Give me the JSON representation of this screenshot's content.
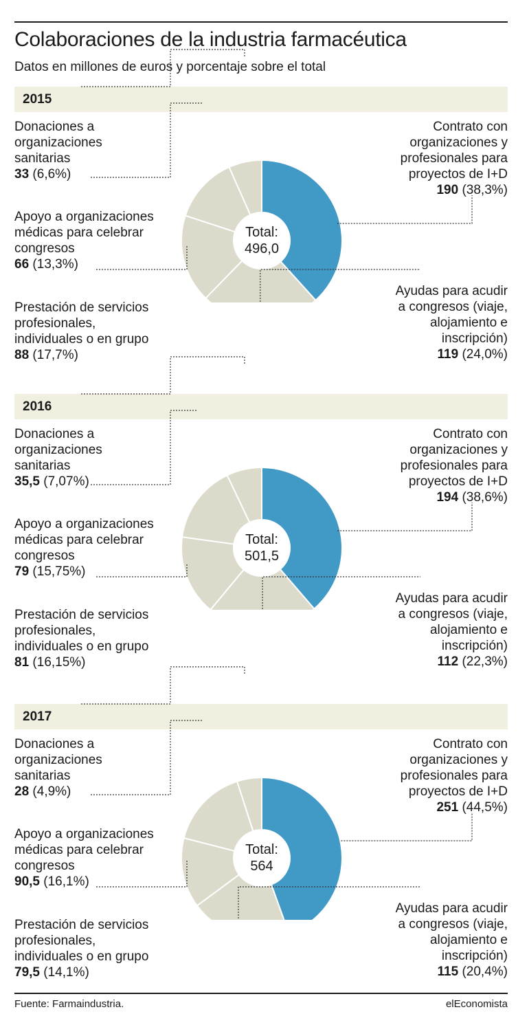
{
  "title": "Colaboraciones de la industria farmacéutica",
  "subtitle": "Datos en millones de euros y porcentaje sobre el total",
  "colors": {
    "highlight": "#4199c6",
    "base": "#dcdacb",
    "band": "#f0efe0",
    "text": "#1a1a1a"
  },
  "footer": {
    "source": "Fuente: Farmaindustria.",
    "brand": "elEconomista"
  },
  "chart_data": [
    {
      "type": "pie",
      "year": "2015",
      "center_label": "Total:",
      "total": "496,0",
      "slices": [
        {
          "lines": [
            "Contrato con",
            "organizaciones y",
            "profesionales para",
            "proyectos de I+D"
          ],
          "value": 190,
          "value_text": "190",
          "pct_text": "(38,3%)",
          "percent": 38.3,
          "highlight": true
        },
        {
          "lines": [
            "Ayudas para acudir",
            "a congresos (viaje,",
            "alojamiento e",
            "inscripción)"
          ],
          "value": 119,
          "value_text": "119",
          "pct_text": "(24,0%)",
          "percent": 24.0,
          "highlight": false
        },
        {
          "lines": [
            "Prestación de servicios",
            "profesionales,",
            "individuales o en grupo"
          ],
          "value": 88,
          "value_text": "88",
          "pct_text": "(17,7%)",
          "percent": 17.7,
          "highlight": false
        },
        {
          "lines": [
            "Apoyo a organizaciones",
            "médicas para celebrar",
            "congresos"
          ],
          "value": 66,
          "value_text": "66",
          "pct_text": "(13,3%)",
          "percent": 13.3,
          "highlight": false
        },
        {
          "lines": [
            "Donaciones a",
            "organizaciones",
            "sanitarias"
          ],
          "value": 33,
          "value_text": "33",
          "pct_text": "(6,6%)",
          "percent": 6.6,
          "highlight": false
        }
      ]
    },
    {
      "type": "pie",
      "year": "2016",
      "center_label": "Total:",
      "total": "501,5",
      "slices": [
        {
          "lines": [
            "Contrato con",
            "organizaciones y",
            "profesionales para",
            "proyectos de I+D"
          ],
          "value": 194,
          "value_text": "194",
          "pct_text": "(38,6%)",
          "percent": 38.6,
          "highlight": true
        },
        {
          "lines": [
            "Ayudas para acudir",
            "a congresos (viaje,",
            "alojamiento e",
            "inscripción)"
          ],
          "value": 112,
          "value_text": "112",
          "pct_text": "(22,3%)",
          "percent": 22.3,
          "highlight": false
        },
        {
          "lines": [
            "Prestación de servicios",
            "profesionales,",
            "individuales o en grupo"
          ],
          "value": 81,
          "value_text": "81",
          "pct_text": "(16,15%)",
          "percent": 16.15,
          "highlight": false
        },
        {
          "lines": [
            "Apoyo a organizaciones",
            "médicas para celebrar",
            "congresos"
          ],
          "value": 79,
          "value_text": "79",
          "pct_text": "(15,75%)",
          "percent": 15.75,
          "highlight": false
        },
        {
          "lines": [
            "Donaciones a",
            "organizaciones",
            "sanitarias"
          ],
          "value": 35.5,
          "value_text": "35,5",
          "pct_text": "(7,07%)",
          "percent": 7.07,
          "highlight": false
        }
      ]
    },
    {
      "type": "pie",
      "year": "2017",
      "center_label": "Total:",
      "total": "564",
      "slices": [
        {
          "lines": [
            "Contrato con",
            "organizaciones y",
            "profesionales para",
            "proyectos de I+D"
          ],
          "value": 251,
          "value_text": "251",
          "pct_text": "(44,5%)",
          "percent": 44.5,
          "highlight": true
        },
        {
          "lines": [
            "Ayudas para acudir",
            "a congresos (viaje,",
            "alojamiento e",
            "inscripción)"
          ],
          "value": 115,
          "value_text": "115",
          "pct_text": "(20,4%)",
          "percent": 20.4,
          "highlight": false
        },
        {
          "lines": [
            "Prestación de servicios",
            "profesionales,",
            "individuales o en grupo"
          ],
          "value": 79.5,
          "value_text": "79,5",
          "pct_text": "(14,1%)",
          "percent": 14.1,
          "highlight": false
        },
        {
          "lines": [
            "Apoyo a organizaciones",
            "médicas para celebrar",
            "congresos"
          ],
          "value": 90.5,
          "value_text": "90,5",
          "pct_text": "(16,1%)",
          "percent": 16.1,
          "highlight": false
        },
        {
          "lines": [
            "Donaciones a",
            "organizaciones",
            "sanitarias"
          ],
          "value": 28,
          "value_text": "28",
          "pct_text": "(4,9%)",
          "percent": 4.9,
          "highlight": false
        }
      ]
    }
  ]
}
